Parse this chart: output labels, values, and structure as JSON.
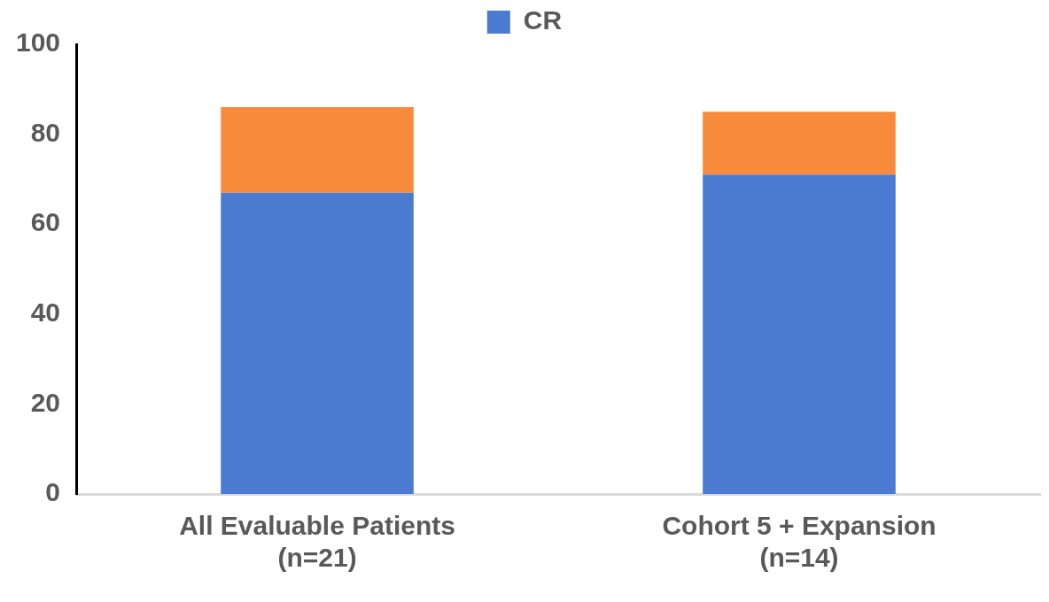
{
  "chart_data": {
    "type": "bar",
    "stacked": true,
    "categories": [
      "All Evaluable Patients\n(n=21)",
      "Cohort 5 + Expansion\n(n=14)"
    ],
    "series": [
      {
        "name": "CR",
        "color": "#4a7bd0",
        "values": [
          67,
          71
        ]
      },
      {
        "color": "#f78a3b",
        "values": [
          19,
          14
        ]
      }
    ],
    "ylim": [
      0,
      100
    ],
    "yticks": [
      0,
      20,
      40,
      60,
      80,
      100
    ],
    "grid": false,
    "legend": "top"
  }
}
